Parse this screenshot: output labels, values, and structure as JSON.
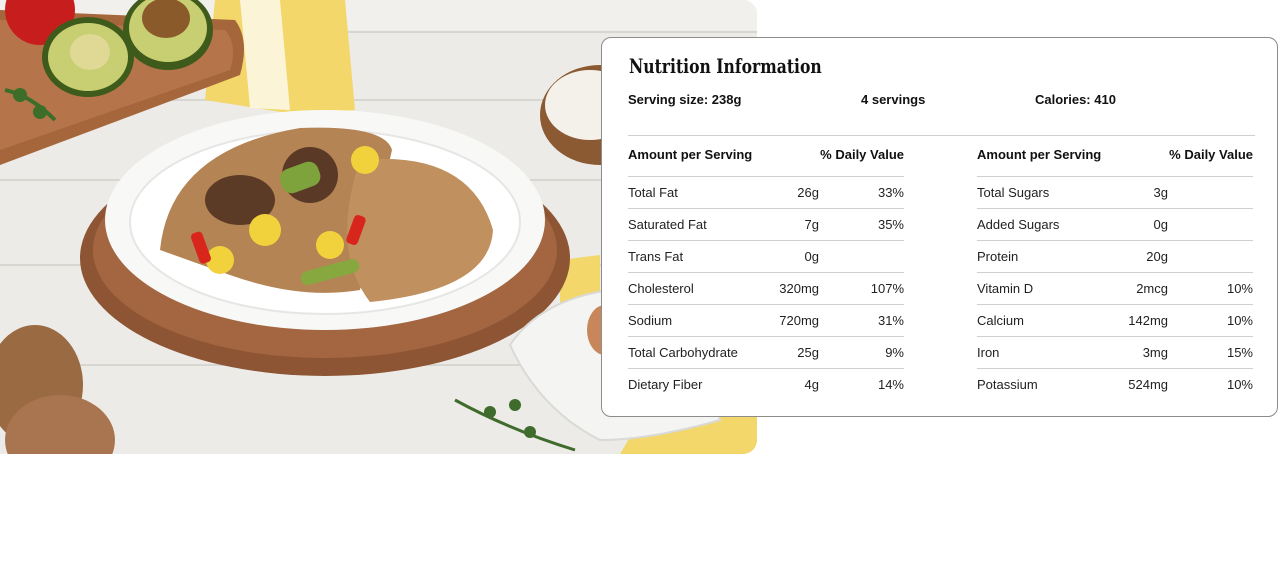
{
  "photo": {
    "icon": "food-photo"
  },
  "nutrition": {
    "title": "Nutrition Information",
    "serving_size": "Serving size:  238g",
    "servings": "4  servings",
    "calories": "Calories: 410",
    "header_amount": "Amount per Serving",
    "header_dv": "% Daily Value",
    "left": [
      {
        "name": "Total Fat",
        "amount": "26g",
        "dv": "33%"
      },
      {
        "name": "Saturated Fat",
        "amount": "7g",
        "dv": "35%"
      },
      {
        "name": "Trans Fat",
        "amount": "0g",
        "dv": ""
      },
      {
        "name": "Cholesterol",
        "amount": "320mg",
        "dv": "107%"
      },
      {
        "name": "Sodium",
        "amount": "720mg",
        "dv": "31%"
      },
      {
        "name": "Total Carbohydrate",
        "amount": "25g",
        "dv": "9%"
      },
      {
        "name": "Dietary Fiber",
        "amount": "4g",
        "dv": "14%"
      }
    ],
    "right": [
      {
        "name": "Total Sugars",
        "amount": "3g",
        "dv": ""
      },
      {
        "name": "Added Sugars",
        "amount": "0g",
        "dv": ""
      },
      {
        "name": "Protein",
        "amount": "20g",
        "dv": ""
      },
      {
        "name": "Vitamin D",
        "amount": "2mcg",
        "dv": "10%"
      },
      {
        "name": "Calcium",
        "amount": "142mg",
        "dv": "10%"
      },
      {
        "name": "Iron",
        "amount": "3mg",
        "dv": "15%"
      },
      {
        "name": "Potassium",
        "amount": "524mg",
        "dv": "10%"
      }
    ]
  }
}
